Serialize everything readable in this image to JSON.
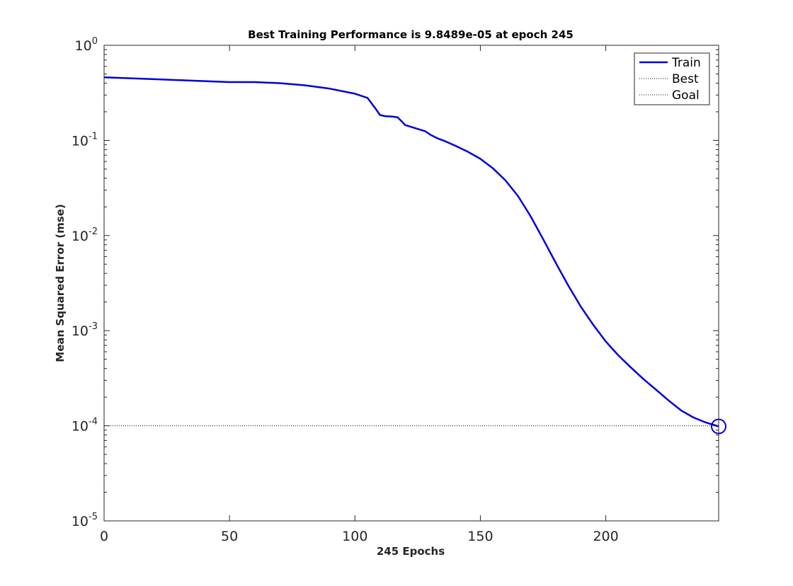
{
  "chart_data": {
    "type": "line",
    "title": "Best Training Performance is 9.8489e-05 at epoch 245",
    "xlabel": "245 Epochs",
    "ylabel": "Mean Squared Error  (mse)",
    "xlim": [
      0,
      245
    ],
    "ylim": [
      1e-05,
      1
    ],
    "yscale": "log",
    "xticks": [
      0,
      50,
      100,
      150,
      200
    ],
    "yticks": [
      {
        "value": 1,
        "base": "10",
        "exp": "0"
      },
      {
        "value": 0.1,
        "base": "10",
        "exp": "-1"
      },
      {
        "value": 0.01,
        "base": "10",
        "exp": "-2"
      },
      {
        "value": 0.001,
        "base": "10",
        "exp": "-3"
      },
      {
        "value": 0.0001,
        "base": "10",
        "exp": "-4"
      },
      {
        "value": 1e-05,
        "base": "10",
        "exp": "-5"
      }
    ],
    "legend": {
      "position": "top-right",
      "entries": [
        "Train",
        "Best",
        "Goal"
      ]
    },
    "series": [
      {
        "name": "Train",
        "color": "#0000dd",
        "style": "solid",
        "x": [
          0,
          20,
          40,
          50,
          60,
          70,
          80,
          90,
          100,
          105,
          108,
          110,
          112,
          115,
          117,
          119,
          120,
          122,
          125,
          128,
          130,
          133,
          136,
          140,
          145,
          150,
          155,
          160,
          165,
          170,
          175,
          180,
          185,
          190,
          195,
          200,
          205,
          210,
          215,
          220,
          225,
          230,
          235,
          240,
          245
        ],
        "values": [
          0.46,
          0.44,
          0.42,
          0.41,
          0.41,
          0.4,
          0.38,
          0.35,
          0.31,
          0.28,
          0.22,
          0.185,
          0.18,
          0.178,
          0.175,
          0.155,
          0.145,
          0.14,
          0.132,
          0.125,
          0.115,
          0.105,
          0.098,
          0.088,
          0.076,
          0.064,
          0.051,
          0.038,
          0.026,
          0.016,
          0.0092,
          0.0052,
          0.003,
          0.0018,
          0.00115,
          0.00077,
          0.00055,
          0.00041,
          0.00031,
          0.00024,
          0.000185,
          0.000145,
          0.000122,
          0.000108,
          9.8489e-05
        ]
      },
      {
        "name": "Best",
        "color": "#000000",
        "style": "dotted",
        "x": [
          245,
          245
        ],
        "values": [
          1e-05,
          1
        ]
      },
      {
        "name": "Goal",
        "color": "#000000",
        "style": "dotted",
        "x": [
          0,
          245
        ],
        "values": [
          0.0001,
          0.0001
        ]
      }
    ],
    "best_marker": {
      "x": 245,
      "y": 9.8489e-05,
      "color": "#0000dd"
    }
  }
}
